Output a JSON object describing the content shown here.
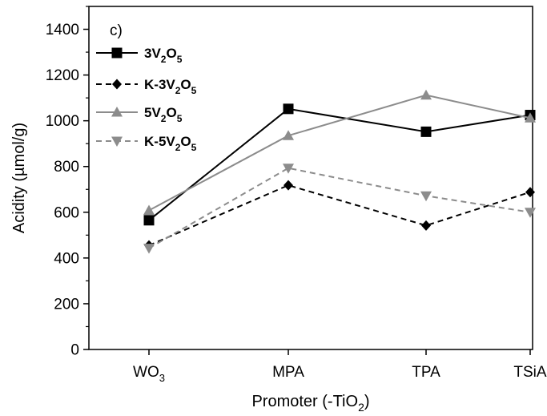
{
  "chart_data": {
    "type": "line",
    "panel_label": "c)",
    "xlabel": {
      "main": "Promoter (-TiO",
      "sub": "2",
      "tail": ")"
    },
    "ylabel": "Acidity (µmol/g)",
    "ylim": [
      0,
      1500
    ],
    "yticks": [
      0,
      200,
      400,
      600,
      800,
      1000,
      1200,
      1400
    ],
    "categories": [
      {
        "main": "WO",
        "sub": "3"
      },
      {
        "main": "MPA",
        "sub": ""
      },
      {
        "main": "TPA",
        "sub": ""
      },
      {
        "main": "TSiA",
        "sub": ""
      }
    ],
    "grid": false,
    "legend_position": "top-left",
    "series": [
      {
        "legend": [
          {
            "t": "3V",
            "s": false
          },
          {
            "t": "2",
            "s": true
          },
          {
            "t": "O",
            "s": false
          },
          {
            "t": "5",
            "s": true
          }
        ],
        "values": [
          565,
          1052,
          952,
          1025
        ],
        "color": "#000000",
        "dash": "",
        "marker": "square"
      },
      {
        "legend": [
          {
            "t": "K-3V",
            "s": false
          },
          {
            "t": "2",
            "s": true
          },
          {
            "t": "O",
            "s": false
          },
          {
            "t": "5",
            "s": true
          }
        ],
        "values": [
          455,
          718,
          542,
          688
        ],
        "color": "#000000",
        "dash": "7,5",
        "marker": "diamond"
      },
      {
        "legend": [
          {
            "t": "5V",
            "s": false
          },
          {
            "t": "2",
            "s": true
          },
          {
            "t": "O",
            "s": false
          },
          {
            "t": "5",
            "s": true
          }
        ],
        "values": [
          608,
          935,
          1112,
          1012
        ],
        "color": "#8c8c8c",
        "dash": "",
        "marker": "triangle-up"
      },
      {
        "legend": [
          {
            "t": "K-5V",
            "s": false
          },
          {
            "t": "2",
            "s": true
          },
          {
            "t": "O",
            "s": false
          },
          {
            "t": "5",
            "s": true
          }
        ],
        "values": [
          443,
          793,
          672,
          600
        ],
        "color": "#8c8c8c",
        "dash": "7,5",
        "marker": "triangle-down"
      }
    ]
  }
}
